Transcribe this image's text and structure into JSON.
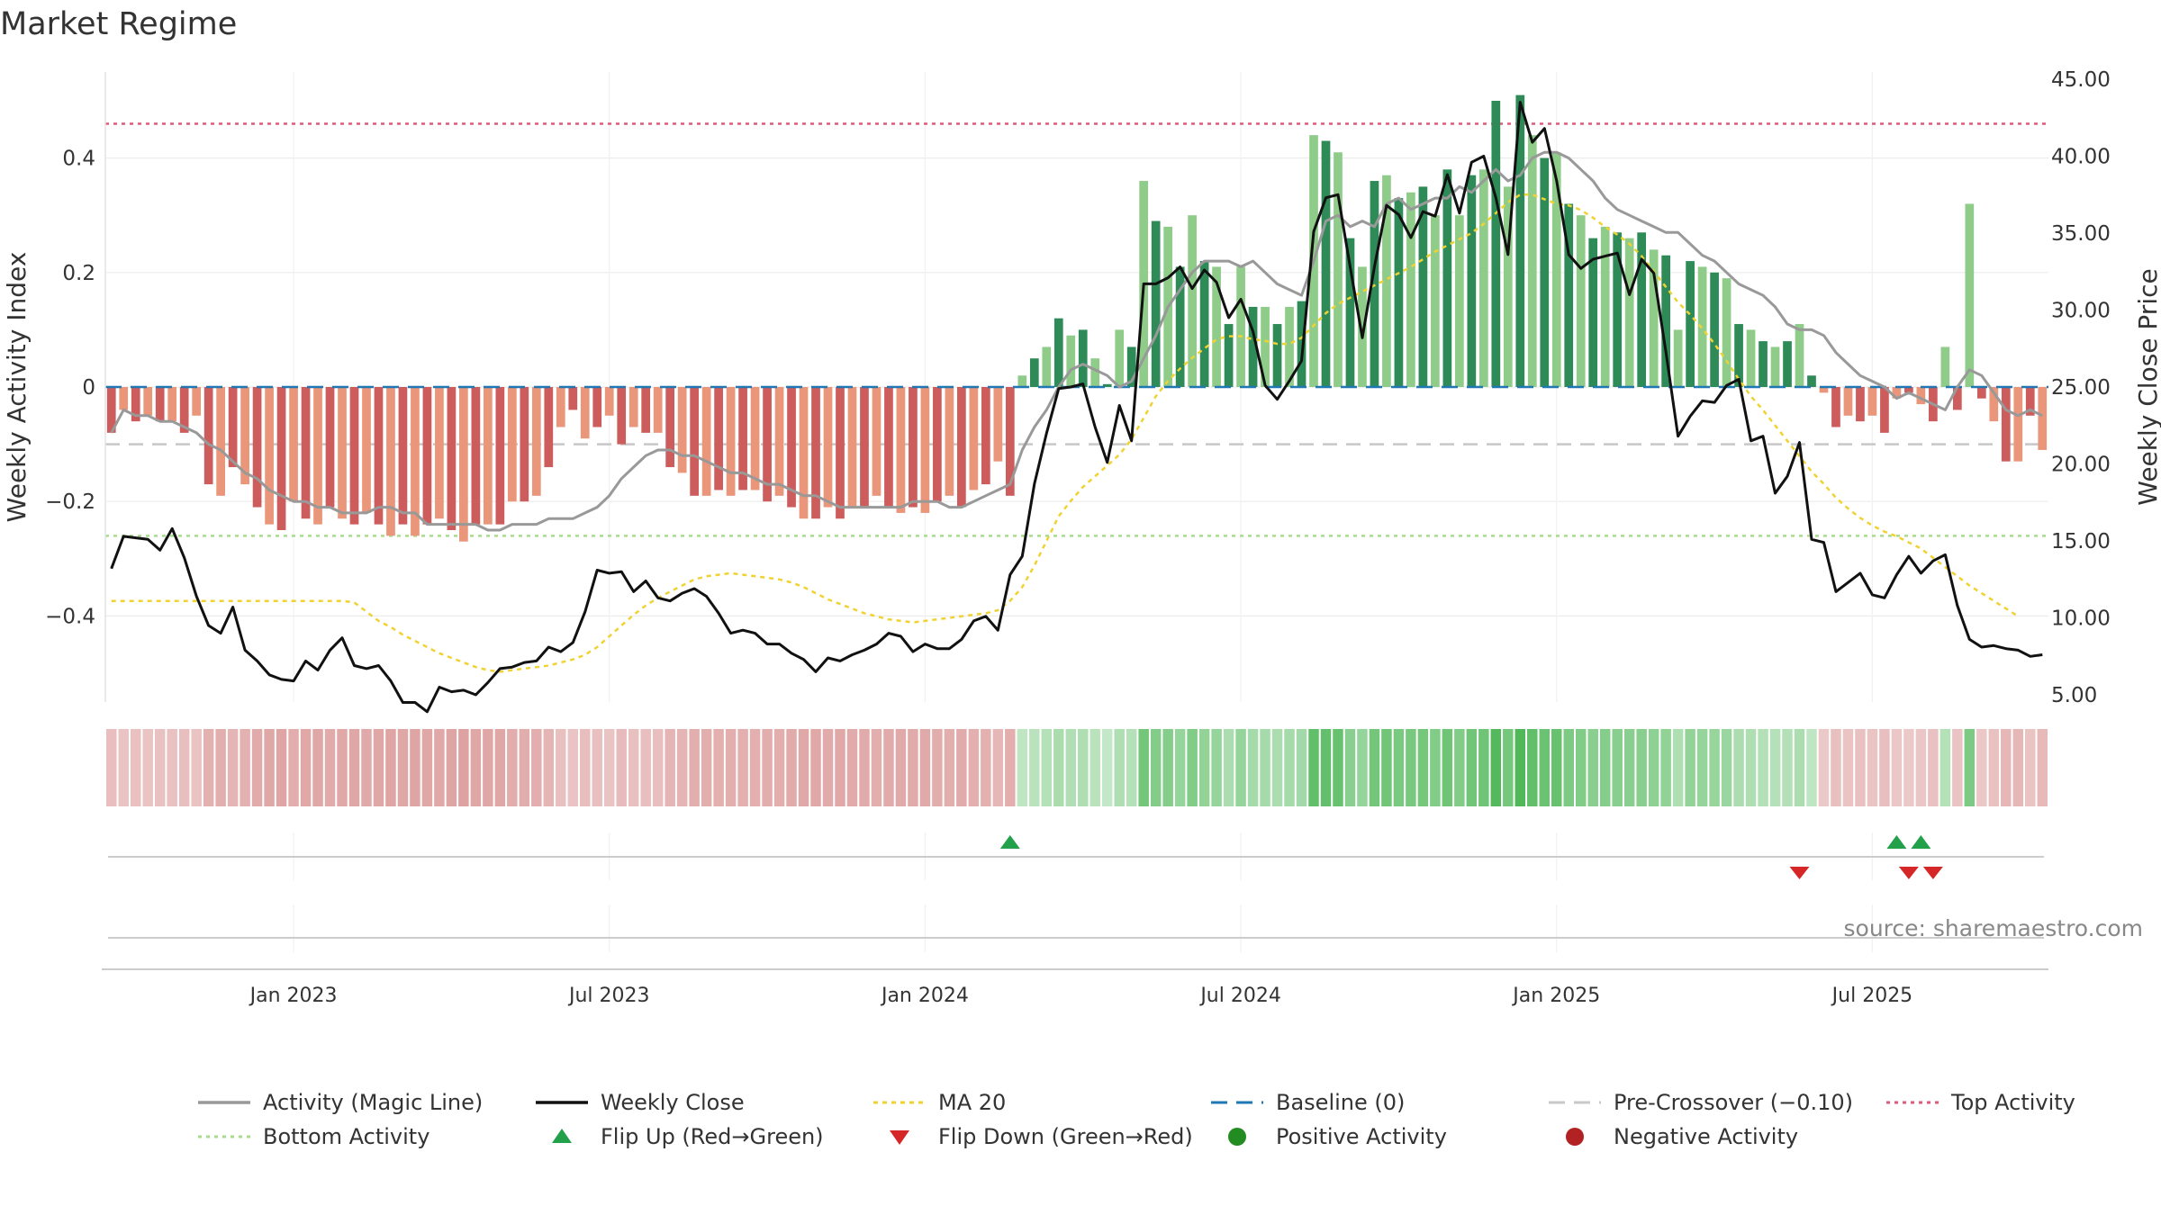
{
  "chart_data": {
    "type": "bar",
    "title": "Market Regime",
    "ylabel": "Weekly Activity Index",
    "ylabel_right": "Weekly Close Price",
    "source": "source: sharemaestro.com",
    "ylim": [
      -0.55,
      0.55
    ],
    "ylim_right": [
      5.0,
      45.0
    ],
    "left_ticks": [
      {
        "value": 0.4,
        "label": "0.4"
      },
      {
        "value": 0.2,
        "label": "0.2"
      },
      {
        "value": 0.0,
        "label": "0"
      },
      {
        "value": -0.2,
        "label": "−0.2"
      },
      {
        "value": -0.4,
        "label": "−0.4"
      }
    ],
    "right_ticks": [
      {
        "value": 45,
        "label": "45.00"
      },
      {
        "value": 40,
        "label": "40.00"
      },
      {
        "value": 35,
        "label": "35.00"
      },
      {
        "value": 30,
        "label": "30.00"
      },
      {
        "value": 25,
        "label": "25.00"
      },
      {
        "value": 20,
        "label": "20.00"
      },
      {
        "value": 15,
        "label": "15.00"
      },
      {
        "value": 10,
        "label": "10.00"
      },
      {
        "value": 5,
        "label": "5.00"
      }
    ],
    "x_ticks": [
      {
        "index": 15,
        "label": "Jan 2023"
      },
      {
        "index": 41,
        "label": "Jul 2023"
      },
      {
        "index": 67,
        "label": "Jan 2024"
      },
      {
        "index": 93,
        "label": "Jul 2024"
      },
      {
        "index": 119,
        "label": "Jan 2025"
      },
      {
        "index": 145,
        "label": "Jul 2025"
      }
    ],
    "reference_lines": {
      "baseline": 0.0,
      "pre_crossover": -0.1,
      "top_activity": 0.46,
      "bottom_activity": -0.26
    },
    "colors": {
      "neg_dark": "#cd5c5c",
      "neg_light": "#e9967a",
      "pos_dark": "#2e8b57",
      "pos_light": "#8fcc8a",
      "close": "#111111",
      "magic": "#999999",
      "ma20": "#f0d232",
      "baseline": "#1f77b4",
      "pre_crossover": "#c8c8c8",
      "top": "#e05a7a",
      "bottom": "#a8dc8c",
      "flip_up": "#22a04a",
      "flip_down": "#d62728",
      "pos_dot": "#228b22",
      "neg_dot": "#b22222"
    },
    "activity": [
      -0.08,
      -0.04,
      -0.06,
      -0.05,
      -0.06,
      -0.06,
      -0.08,
      -0.05,
      -0.17,
      -0.19,
      -0.14,
      -0.17,
      -0.21,
      -0.24,
      -0.25,
      -0.2,
      -0.23,
      -0.24,
      -0.21,
      -0.23,
      -0.24,
      -0.22,
      -0.24,
      -0.26,
      -0.24,
      -0.26,
      -0.24,
      -0.23,
      -0.25,
      -0.27,
      -0.24,
      -0.24,
      -0.24,
      -0.2,
      -0.2,
      -0.19,
      -0.14,
      -0.07,
      -0.04,
      -0.09,
      -0.07,
      -0.05,
      -0.1,
      -0.07,
      -0.08,
      -0.08,
      -0.14,
      -0.15,
      -0.19,
      -0.19,
      -0.18,
      -0.19,
      -0.18,
      -0.18,
      -0.2,
      -0.19,
      -0.21,
      -0.23,
      -0.23,
      -0.21,
      -0.23,
      -0.21,
      -0.21,
      -0.19,
      -0.21,
      -0.22,
      -0.21,
      -0.22,
      -0.2,
      -0.19,
      -0.21,
      -0.18,
      -0.17,
      -0.13,
      -0.19,
      0.02,
      0.05,
      0.07,
      0.12,
      0.09,
      0.1,
      0.05,
      0.005,
      0.1,
      0.07,
      0.36,
      0.29,
      0.28,
      0.21,
      0.3,
      0.22,
      0.21,
      0.11,
      0.21,
      0.14,
      0.14,
      0.11,
      0.14,
      0.15,
      0.44,
      0.43,
      0.41,
      0.26,
      0.21,
      0.36,
      0.37,
      0.33,
      0.34,
      0.35,
      0.3,
      0.38,
      0.3,
      0.37,
      0.38,
      0.5,
      0.35,
      0.51,
      0.44,
      0.4,
      0.41,
      0.32,
      0.3,
      0.26,
      0.28,
      0.27,
      0.26,
      0.27,
      0.24,
      0.23,
      0.1,
      0.22,
      0.21,
      0.2,
      0.19,
      0.11,
      0.1,
      0.08,
      0.07,
      0.08,
      0.11,
      0.02,
      -0.01,
      -0.07,
      -0.05,
      -0.06,
      -0.05,
      -0.08,
      -0.02,
      -0.01,
      -0.03,
      -0.06,
      0.07,
      -0.04,
      0.32,
      -0.02,
      -0.06,
      -0.13,
      -0.13,
      -0.05,
      -0.11
    ],
    "close": [
      13.2,
      15.3,
      15.2,
      15.1,
      14.4,
      15.8,
      13.9,
      11.4,
      9.5,
      9.0,
      10.7,
      7.9,
      7.2,
      6.3,
      6.0,
      5.9,
      7.2,
      6.6,
      7.9,
      8.7,
      6.9,
      6.7,
      6.9,
      5.9,
      4.5,
      4.5,
      3.9,
      5.5,
      5.2,
      5.3,
      5.0,
      5.8,
      6.7,
      6.8,
      7.1,
      7.2,
      8.1,
      7.8,
      8.4,
      10.4,
      13.1,
      12.9,
      13.0,
      11.7,
      12.4,
      11.3,
      11.1,
      11.6,
      11.9,
      11.4,
      10.3,
      9.0,
      9.2,
      9.0,
      8.3,
      8.3,
      7.7,
      7.3,
      6.5,
      7.4,
      7.2,
      7.6,
      7.9,
      8.3,
      9.0,
      8.8,
      7.8,
      8.3,
      8.0,
      8.0,
      8.6,
      9.8,
      10.1,
      9.2,
      12.8,
      14.0,
      18.7,
      22.0,
      24.9,
      25.0,
      25.2,
      22.4,
      20.1,
      23.8,
      21.5,
      31.7,
      31.7,
      32.1,
      32.8,
      31.4,
      32.6,
      31.8,
      29.5,
      30.7,
      28.6,
      25.1,
      24.2,
      25.4,
      26.7,
      35.1,
      37.3,
      37.5,
      32.8,
      28.2,
      32.8,
      36.8,
      36.2,
      34.7,
      36.4,
      36.1,
      38.8,
      36.3,
      39.6,
      40.0,
      37.3,
      33.6,
      43.5,
      40.9,
      41.8,
      38.4,
      33.6,
      32.7,
      33.3,
      33.5,
      33.7,
      31.0,
      33.3,
      32.4,
      27.3,
      21.8,
      23.1,
      24.1,
      24.0,
      25.1,
      25.5,
      21.5,
      21.8,
      18.1,
      19.2,
      21.4,
      15.1,
      14.9,
      11.7,
      12.3,
      12.9,
      11.5,
      11.3,
      12.8,
      14.0,
      12.9,
      13.7,
      14.1,
      10.8,
      8.6,
      8.1,
      8.2,
      8.0,
      7.9,
      7.5,
      7.6
    ],
    "magic": [
      -0.08,
      -0.04,
      -0.05,
      -0.05,
      -0.06,
      -0.06,
      -0.07,
      -0.08,
      -0.1,
      -0.11,
      -0.13,
      -0.15,
      -0.16,
      -0.18,
      -0.19,
      -0.2,
      -0.2,
      -0.21,
      -0.21,
      -0.22,
      -0.22,
      -0.22,
      -0.21,
      -0.21,
      -0.22,
      -0.22,
      -0.24,
      -0.24,
      -0.24,
      -0.24,
      -0.24,
      -0.25,
      -0.25,
      -0.24,
      -0.24,
      -0.24,
      -0.23,
      -0.23,
      -0.23,
      -0.22,
      -0.21,
      -0.19,
      -0.16,
      -0.14,
      -0.12,
      -0.11,
      -0.11,
      -0.12,
      -0.12,
      -0.13,
      -0.14,
      -0.15,
      -0.15,
      -0.16,
      -0.17,
      -0.17,
      -0.18,
      -0.19,
      -0.19,
      -0.2,
      -0.21,
      -0.21,
      -0.21,
      -0.21,
      -0.21,
      -0.21,
      -0.2,
      -0.2,
      -0.2,
      -0.21,
      -0.21,
      -0.2,
      -0.19,
      -0.18,
      -0.17,
      -0.11,
      -0.07,
      -0.04,
      0.0,
      0.03,
      0.04,
      0.03,
      0.02,
      0.0,
      0.01,
      0.05,
      0.09,
      0.14,
      0.17,
      0.2,
      0.22,
      0.22,
      0.22,
      0.21,
      0.22,
      0.2,
      0.18,
      0.17,
      0.16,
      0.22,
      0.29,
      0.3,
      0.28,
      0.29,
      0.28,
      0.32,
      0.33,
      0.31,
      0.32,
      0.33,
      0.33,
      0.35,
      0.34,
      0.36,
      0.38,
      0.36,
      0.37,
      0.4,
      0.41,
      0.41,
      0.4,
      0.38,
      0.36,
      0.33,
      0.31,
      0.3,
      0.29,
      0.28,
      0.27,
      0.27,
      0.25,
      0.23,
      0.22,
      0.2,
      0.18,
      0.17,
      0.16,
      0.14,
      0.11,
      0.1,
      0.1,
      0.09,
      0.06,
      0.04,
      0.02,
      0.01,
      0.0,
      -0.02,
      -0.01,
      -0.02,
      -0.03,
      -0.04,
      0.0,
      0.03,
      0.02,
      -0.01,
      -0.04,
      -0.05,
      -0.04,
      -0.05
    ],
    "ma20": [
      11.1,
      11.1,
      11.1,
      11.1,
      11.1,
      11.1,
      11.1,
      11.1,
      11.1,
      11.1,
      11.1,
      11.1,
      11.1,
      11.1,
      11.1,
      11.1,
      11.1,
      11.1,
      11.1,
      11.1,
      11.0,
      10.4,
      9.8,
      9.4,
      8.9,
      8.5,
      8.1,
      7.7,
      7.4,
      7.1,
      6.8,
      6.6,
      6.5,
      6.6,
      6.7,
      6.8,
      6.9,
      7.1,
      7.3,
      7.6,
      8.1,
      8.8,
      9.5,
      10.2,
      10.8,
      11.3,
      11.7,
      12.1,
      12.5,
      12.7,
      12.8,
      12.9,
      12.8,
      12.7,
      12.6,
      12.5,
      12.3,
      12.0,
      11.6,
      11.2,
      10.9,
      10.6,
      10.3,
      10.1,
      9.9,
      9.8,
      9.7,
      9.8,
      9.9,
      10.0,
      10.1,
      10.2,
      10.3,
      10.5,
      11.1,
      12.0,
      13.4,
      15.0,
      16.6,
      17.6,
      18.5,
      19.2,
      19.9,
      20.6,
      21.6,
      23.0,
      24.4,
      25.4,
      26.2,
      26.9,
      27.5,
      28.1,
      28.3,
      28.3,
      28.1,
      28.0,
      27.8,
      27.8,
      28.2,
      29.0,
      29.8,
      30.4,
      30.8,
      31.2,
      31.6,
      32.0,
      32.4,
      32.8,
      33.3,
      33.8,
      34.2,
      34.6,
      35.0,
      35.6,
      36.3,
      37.0,
      37.5,
      37.5,
      37.2,
      36.9,
      36.8,
      36.5,
      36.0,
      35.4,
      34.9,
      34.3,
      33.5,
      32.5,
      31.5,
      30.5,
      29.7,
      28.8,
      27.8,
      26.7,
      25.5,
      24.4,
      23.5,
      22.5,
      21.5,
      20.5,
      19.5,
      18.7,
      17.8,
      17.1,
      16.5,
      16.0,
      15.6,
      15.3,
      14.9,
      14.5,
      13.9,
      13.3,
      12.7,
      12.1,
      11.6,
      11.1,
      10.6,
      10.1
    ],
    "flips_up": [
      74,
      147,
      149
    ],
    "flips_down": [
      139,
      148,
      150
    ],
    "legend": [
      {
        "key": "magic",
        "label": "Activity (Magic Line)"
      },
      {
        "key": "close",
        "label": "Weekly Close"
      },
      {
        "key": "ma20",
        "label": "MA 20"
      },
      {
        "key": "baseline",
        "label": "Baseline (0)"
      },
      {
        "key": "pre",
        "label": "Pre-Crossover (−0.10)"
      },
      {
        "key": "top",
        "label": "Top Activity"
      },
      {
        "key": "bottom",
        "label": "Bottom Activity"
      },
      {
        "key": "flipup",
        "label": "Flip Up (Red→Green)"
      },
      {
        "key": "flipdown",
        "label": "Flip Down (Green→Red)"
      },
      {
        "key": "posdot",
        "label": "Positive Activity"
      },
      {
        "key": "negdot",
        "label": "Negative Activity"
      }
    ]
  }
}
